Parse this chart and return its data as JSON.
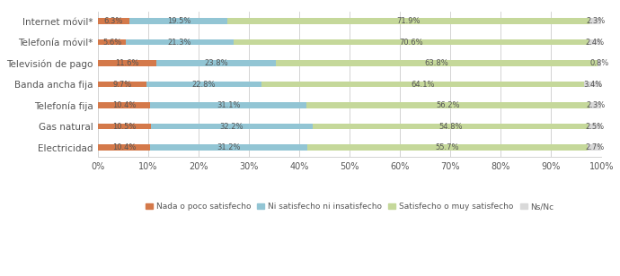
{
  "categories": [
    "Internet móvil*",
    "Telefonía móvil*",
    "Televisión de pago",
    "Banda ancha fija",
    "Telefonía fija",
    "Gas natural",
    "Electricidad"
  ],
  "segments": [
    {
      "label": "Nada o poco satisfecho",
      "color": "#d4794a",
      "values": [
        6.3,
        5.6,
        11.6,
        9.7,
        10.4,
        10.5,
        10.4
      ]
    },
    {
      "label": "Ni satisfecho ni insatisfecho",
      "color": "#92c5d4",
      "values": [
        19.5,
        21.3,
        23.8,
        22.8,
        31.1,
        32.2,
        31.2
      ]
    },
    {
      "label": "Satisfecho o muy satisfecho",
      "color": "#c5d89a",
      "values": [
        71.9,
        70.6,
        63.8,
        64.1,
        56.2,
        54.8,
        55.7
      ]
    },
    {
      "label": "Ns/Nc",
      "color": "#d9d9d9",
      "values": [
        2.3,
        2.4,
        0.8,
        3.4,
        2.3,
        2.5,
        2.7
      ]
    }
  ],
  "bar_height": 0.28,
  "xlim": [
    0,
    100
  ],
  "xtick_labels": [
    "0%",
    "10%",
    "20%",
    "30%",
    "40%",
    "50%",
    "60%",
    "70%",
    "80%",
    "90%",
    "100%"
  ],
  "xtick_values": [
    0,
    10,
    20,
    30,
    40,
    50,
    60,
    70,
    80,
    90,
    100
  ],
  "legend_fontsize": 6.5,
  "label_fontsize": 6.0,
  "ytick_fontsize": 7.5,
  "background_color": "#ffffff",
  "grid_color": "#cccccc",
  "figsize": [
    6.9,
    3.08
  ],
  "dpi": 100
}
